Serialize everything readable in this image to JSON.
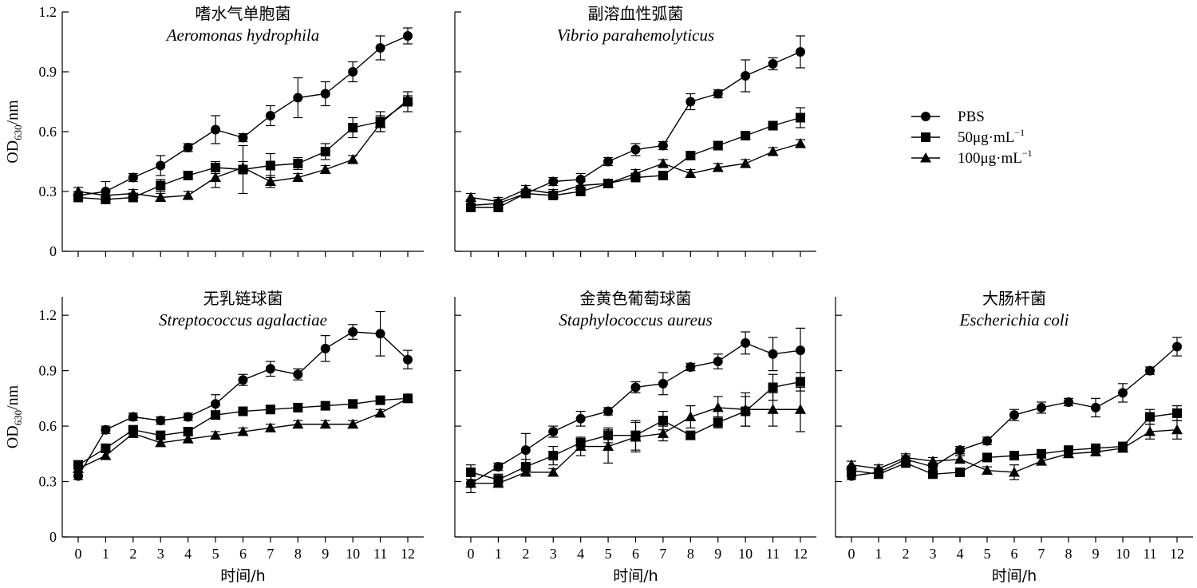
{
  "legend": {
    "position": "right-of-top-row",
    "entries": [
      {
        "label": "PBS",
        "marker": "circle"
      },
      {
        "label": "50μg·mL",
        "sup": "−1",
        "marker": "square"
      },
      {
        "label": "100μg·mL",
        "sup": "−1",
        "marker": "triangle"
      }
    ]
  },
  "chart_data": [
    {
      "type": "line",
      "title": "嗜水气单胞菌",
      "subtitle": "Aeromonas hydrophila",
      "ylabel_main": "OD",
      "ylabel_sub": "630",
      "ylabel_unit": "/nm",
      "xlabel": "",
      "x": [
        0,
        1,
        2,
        3,
        4,
        5,
        6,
        7,
        8,
        9,
        10,
        11,
        12
      ],
      "x_ticks": [
        "0",
        "1",
        "2",
        "3",
        "4",
        "5",
        "6",
        "7",
        "8",
        "9",
        "10",
        "11",
        "12"
      ],
      "show_x_ticklabels": false,
      "ylim": [
        0,
        1.2
      ],
      "y_ticks": [
        0,
        0.3,
        0.6,
        0.9,
        1.2
      ],
      "y_ticklabels": [
        "0",
        "0.3",
        "0.6",
        "0.9",
        "1.2"
      ],
      "grid": false,
      "series": [
        {
          "marker": "circle",
          "values": [
            0.28,
            0.3,
            0.37,
            0.43,
            0.52,
            0.61,
            0.57,
            0.68,
            0.77,
            0.79,
            0.9,
            1.02,
            1.08
          ],
          "errors": [
            0.02,
            0.05,
            0.02,
            0.05,
            0.02,
            0.07,
            0.02,
            0.05,
            0.1,
            0.06,
            0.05,
            0.06,
            0.04
          ]
        },
        {
          "marker": "square",
          "values": [
            0.27,
            0.26,
            0.27,
            0.33,
            0.38,
            0.42,
            0.41,
            0.43,
            0.44,
            0.5,
            0.62,
            0.65,
            0.75
          ],
          "errors": [
            0.02,
            0.02,
            0.02,
            0.03,
            0.02,
            0.03,
            0.12,
            0.06,
            0.03,
            0.04,
            0.05,
            0.05,
            0.05
          ]
        },
        {
          "marker": "triangle",
          "values": [
            0.3,
            0.28,
            0.29,
            0.27,
            0.28,
            0.37,
            0.42,
            0.35,
            0.37,
            0.41,
            0.46,
            0.64,
            0.76
          ],
          "errors": [
            0.02,
            0.02,
            0.02,
            0.02,
            0.02,
            0.05,
            0.03,
            0.03,
            0.02,
            0.02,
            0.02,
            0.04,
            0.02
          ]
        }
      ]
    },
    {
      "type": "line",
      "title": "副溶血性弧菌",
      "subtitle": "Vibrio parahemolyticus",
      "xlabel": "",
      "x": [
        0,
        1,
        2,
        3,
        4,
        5,
        6,
        7,
        8,
        9,
        10,
        11,
        12
      ],
      "x_ticks": [
        "0",
        "1",
        "2",
        "3",
        "4",
        "5",
        "6",
        "7",
        "8",
        "9",
        "10",
        "11",
        "12"
      ],
      "show_x_ticklabels": false,
      "ylim": [
        0,
        1.2
      ],
      "y_ticks": [
        0,
        0.3,
        0.6,
        0.9,
        1.2
      ],
      "y_ticklabels": [],
      "grid": false,
      "series": [
        {
          "marker": "circle",
          "values": [
            0.23,
            0.24,
            0.29,
            0.35,
            0.36,
            0.45,
            0.51,
            0.53,
            0.75,
            0.79,
            0.88,
            0.94,
            1.0
          ],
          "errors": [
            0.03,
            0.02,
            0.02,
            0.02,
            0.03,
            0.02,
            0.03,
            0.02,
            0.04,
            0.02,
            0.08,
            0.03,
            0.08
          ]
        },
        {
          "marker": "square",
          "values": [
            0.22,
            0.22,
            0.29,
            0.28,
            0.3,
            0.34,
            0.37,
            0.38,
            0.48,
            0.53,
            0.58,
            0.63,
            0.67
          ],
          "errors": [
            0.02,
            0.02,
            0.02,
            0.02,
            0.02,
            0.02,
            0.02,
            0.02,
            0.02,
            0.02,
            0.02,
            0.02,
            0.05
          ]
        },
        {
          "marker": "triangle",
          "values": [
            0.27,
            0.25,
            0.31,
            0.29,
            0.33,
            0.34,
            0.39,
            0.44,
            0.39,
            0.42,
            0.44,
            0.5,
            0.54
          ],
          "errors": [
            0.02,
            0.02,
            0.02,
            0.02,
            0.02,
            0.02,
            0.02,
            0.02,
            0.02,
            0.02,
            0.02,
            0.02,
            0.02
          ]
        }
      ]
    },
    {
      "type": "line",
      "title": "无乳链球菌",
      "subtitle": "Streptococcus agalactiae",
      "ylabel_main": "OD",
      "ylabel_sub": "630",
      "ylabel_unit": "/nm",
      "xlabel": "时间/h",
      "x": [
        0,
        1,
        2,
        3,
        4,
        5,
        6,
        7,
        8,
        9,
        10,
        11,
        12
      ],
      "x_ticks": [
        "0",
        "1",
        "2",
        "3",
        "4",
        "5",
        "6",
        "7",
        "8",
        "9",
        "10",
        "11",
        "12"
      ],
      "show_x_ticklabels": true,
      "ylim": [
        0,
        1.3
      ],
      "y_ticks": [
        0,
        0.3,
        0.6,
        0.9,
        1.2
      ],
      "y_ticklabels": [
        "0",
        "0.3",
        "0.6",
        "0.9",
        "1.2"
      ],
      "grid": false,
      "series": [
        {
          "marker": "circle",
          "values": [
            0.33,
            0.58,
            0.65,
            0.63,
            0.65,
            0.72,
            0.85,
            0.91,
            0.88,
            1.02,
            1.11,
            1.1,
            0.96
          ],
          "errors": [
            0.02,
            0.02,
            0.02,
            0.02,
            0.02,
            0.05,
            0.03,
            0.04,
            0.03,
            0.07,
            0.04,
            0.12,
            0.05
          ]
        },
        {
          "marker": "square",
          "values": [
            0.39,
            0.48,
            0.58,
            0.55,
            0.57,
            0.66,
            0.68,
            0.69,
            0.7,
            0.71,
            0.72,
            0.74,
            0.75
          ],
          "errors": [
            0.02,
            0.02,
            0.02,
            0.02,
            0.02,
            0.02,
            0.02,
            0.02,
            0.02,
            0.02,
            0.02,
            0.02,
            0.02
          ]
        },
        {
          "marker": "triangle",
          "values": [
            0.37,
            0.44,
            0.56,
            0.51,
            0.53,
            0.55,
            0.57,
            0.59,
            0.61,
            0.61,
            0.61,
            0.67,
            0.75
          ],
          "errors": [
            0.02,
            0.02,
            0.02,
            0.02,
            0.02,
            0.02,
            0.02,
            0.02,
            0.02,
            0.02,
            0.02,
            0.02,
            0.02
          ]
        }
      ]
    },
    {
      "type": "line",
      "title": "金黄色葡萄球菌",
      "subtitle": "Staphylococcus aureus",
      "xlabel": "时间/h",
      "x": [
        0,
        1,
        2,
        3,
        4,
        5,
        6,
        7,
        8,
        9,
        10,
        11,
        12
      ],
      "x_ticks": [
        "0",
        "1",
        "2",
        "3",
        "4",
        "5",
        "6",
        "7",
        "8",
        "9",
        "10",
        "11",
        "12"
      ],
      "show_x_ticklabels": true,
      "ylim": [
        0,
        1.3
      ],
      "y_ticks": [
        0,
        0.3,
        0.6,
        0.9,
        1.2
      ],
      "y_ticklabels": [],
      "grid": false,
      "series": [
        {
          "marker": "circle",
          "values": [
            0.29,
            0.38,
            0.47,
            0.57,
            0.64,
            0.68,
            0.81,
            0.83,
            0.92,
            0.95,
            1.05,
            0.99,
            1.01
          ],
          "errors": [
            0.05,
            0.02,
            0.09,
            0.03,
            0.04,
            0.02,
            0.03,
            0.06,
            0.02,
            0.04,
            0.06,
            0.09,
            0.12
          ]
        },
        {
          "marker": "square",
          "values": [
            0.35,
            0.31,
            0.38,
            0.44,
            0.51,
            0.55,
            0.55,
            0.63,
            0.55,
            0.62,
            0.68,
            0.81,
            0.84
          ],
          "errors": [
            0.04,
            0.03,
            0.04,
            0.05,
            0.02,
            0.04,
            0.08,
            0.05,
            0.02,
            0.03,
            0.08,
            0.07,
            0.05
          ]
        },
        {
          "marker": "triangle",
          "values": [
            0.29,
            0.29,
            0.35,
            0.35,
            0.49,
            0.49,
            0.54,
            0.56,
            0.65,
            0.7,
            0.69,
            0.69,
            0.69
          ],
          "errors": [
            0.02,
            0.02,
            0.02,
            0.02,
            0.05,
            0.09,
            0.08,
            0.04,
            0.06,
            0.06,
            0.09,
            0.09,
            0.12
          ]
        }
      ]
    },
    {
      "type": "line",
      "title": "大肠杆菌",
      "subtitle": "Escherichia coli",
      "xlabel": "时间/h",
      "x": [
        0,
        1,
        2,
        3,
        4,
        5,
        6,
        7,
        8,
        9,
        10,
        11,
        12
      ],
      "x_ticks": [
        "0",
        "1",
        "2",
        "3",
        "4",
        "5",
        "6",
        "7",
        "8",
        "9",
        "10",
        "11",
        "12"
      ],
      "show_x_ticklabels": true,
      "ylim": [
        0,
        1.3
      ],
      "y_ticks": [
        0,
        0.3,
        0.6,
        0.9,
        1.2
      ],
      "y_ticklabels": [],
      "grid": false,
      "series": [
        {
          "marker": "circle",
          "values": [
            0.33,
            0.35,
            0.42,
            0.38,
            0.47,
            0.52,
            0.66,
            0.7,
            0.73,
            0.7,
            0.78,
            0.9,
            1.03
          ],
          "errors": [
            0.02,
            0.02,
            0.02,
            0.02,
            0.02,
            0.02,
            0.03,
            0.03,
            0.02,
            0.05,
            0.05,
            0.02,
            0.05
          ]
        },
        {
          "marker": "square",
          "values": [
            0.36,
            0.34,
            0.4,
            0.34,
            0.35,
            0.43,
            0.44,
            0.45,
            0.47,
            0.48,
            0.49,
            0.65,
            0.67
          ],
          "errors": [
            0.02,
            0.02,
            0.02,
            0.02,
            0.02,
            0.02,
            0.02,
            0.02,
            0.02,
            0.02,
            0.02,
            0.04,
            0.04
          ]
        },
        {
          "marker": "triangle",
          "values": [
            0.39,
            0.37,
            0.43,
            0.41,
            0.42,
            0.36,
            0.35,
            0.41,
            0.45,
            0.46,
            0.48,
            0.57,
            0.58
          ],
          "errors": [
            0.02,
            0.02,
            0.02,
            0.02,
            0.02,
            0.02,
            0.04,
            0.02,
            0.02,
            0.02,
            0.02,
            0.04,
            0.05
          ]
        }
      ]
    }
  ]
}
